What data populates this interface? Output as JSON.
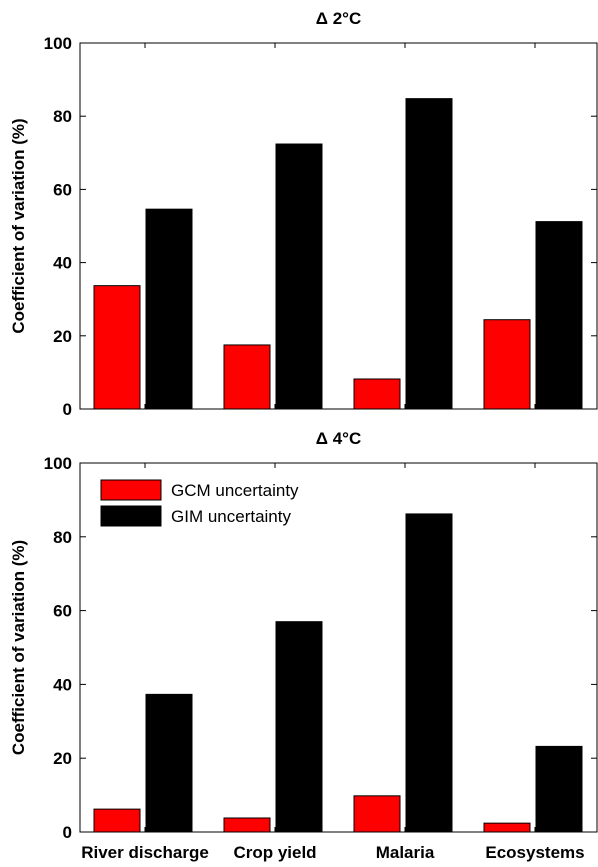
{
  "chart_data": [
    {
      "type": "bar",
      "title": "Δ 2°C",
      "xlabel": "",
      "ylabel": "Coefficient of variation (%)",
      "ylim": [
        0,
        100
      ],
      "yticks": [
        "0",
        "20",
        "40",
        "60",
        "80",
        "100"
      ],
      "categories": [
        "River discharge",
        "Crop yield",
        "Malaria",
        "Ecosystems"
      ],
      "show_category_labels": false,
      "series": [
        {
          "name": "GCM uncertainty",
          "color": "#ff0000",
          "values": [
            33.7,
            17.5,
            8.2,
            24.4
          ]
        },
        {
          "name": "GIM uncertainty",
          "color": "#000000",
          "values": [
            54.6,
            72.4,
            84.8,
            51.2
          ]
        }
      ],
      "grid": false,
      "legend": "none"
    },
    {
      "type": "bar",
      "title": "Δ 4°C",
      "xlabel": "",
      "ylabel": "Coefficient of variation (%)",
      "ylim": [
        0,
        100
      ],
      "yticks": [
        "0",
        "20",
        "40",
        "60",
        "80",
        "100"
      ],
      "categories": [
        "River discharge",
        "Crop yield",
        "Malaria",
        "Ecosystems"
      ],
      "show_category_labels": true,
      "series": [
        {
          "name": "GCM uncertainty",
          "color": "#ff0000",
          "values": [
            6.2,
            3.8,
            9.8,
            2.4
          ]
        },
        {
          "name": "GIM uncertainty",
          "color": "#000000",
          "values": [
            37.3,
            57.0,
            86.2,
            23.2
          ]
        }
      ],
      "grid": false,
      "legend": "top-left"
    }
  ]
}
